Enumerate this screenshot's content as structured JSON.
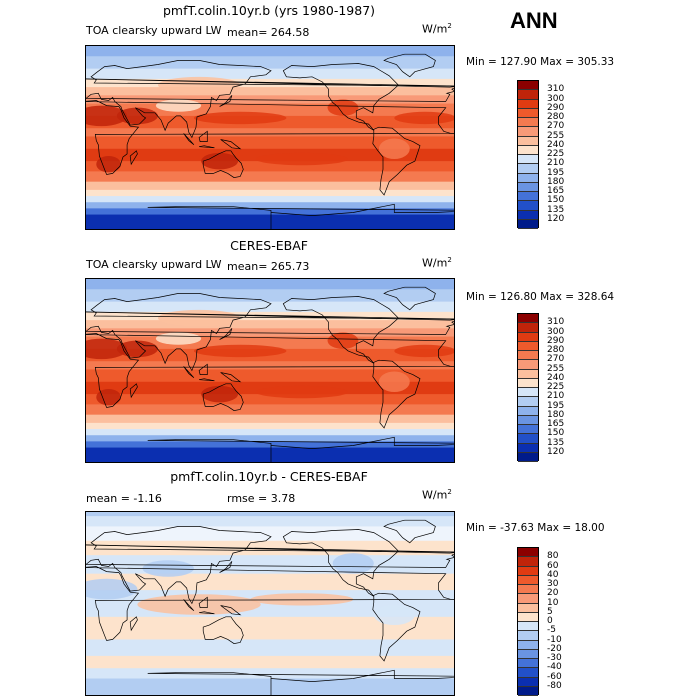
{
  "season": "ANN",
  "panels": [
    {
      "title": "pmfT.colin.10yr.b (yrs 1980-1987)",
      "variable": "TOA clearsky upward LW",
      "stat": "mean= 264.58",
      "units": "W/m",
      "units_sup": "2",
      "minmax": "Min = 127.90 Max = 305.33",
      "field": "model",
      "colorbar": {
        "labels": [
          "310",
          "300",
          "290",
          "280",
          "270",
          "255",
          "240",
          "225",
          "210",
          "195",
          "180",
          "165",
          "150",
          "135",
          "120"
        ],
        "colors": [
          "#8b0000",
          "#c0240a",
          "#e03b12",
          "#ee5a2c",
          "#f47a50",
          "#f89a78",
          "#fbbf9e",
          "#fde3cc",
          "#d6e6f8",
          "#b2cdf2",
          "#8eb2ec",
          "#6a94e2",
          "#4472d8",
          "#2250c8",
          "#0b2fb0",
          "#001b8a"
        ]
      }
    },
    {
      "title": "CERES-EBAF",
      "variable": "TOA clearsky upward LW",
      "stat": "mean= 265.73",
      "units": "W/m",
      "units_sup": "2",
      "minmax": "Min = 126.80 Max = 328.64",
      "field": "obs",
      "colorbar": {
        "labels": [
          "310",
          "300",
          "290",
          "280",
          "270",
          "255",
          "240",
          "225",
          "210",
          "195",
          "180",
          "165",
          "150",
          "135",
          "120"
        ],
        "colors": [
          "#8b0000",
          "#c0240a",
          "#e03b12",
          "#ee5a2c",
          "#f47a50",
          "#f89a78",
          "#fbbf9e",
          "#fde3cc",
          "#d6e6f8",
          "#b2cdf2",
          "#8eb2ec",
          "#6a94e2",
          "#4472d8",
          "#2250c8",
          "#0b2fb0",
          "#001b8a"
        ]
      }
    },
    {
      "title": "pmfT.colin.10yr.b - CERES-EBAF",
      "variable": "mean =  -1.16",
      "stat": "rmse =   3.78",
      "units": "W/m",
      "units_sup": "2",
      "minmax": "Min = -37.63 Max =  18.00",
      "field": "diff",
      "colorbar": {
        "labels": [
          "80",
          "60",
          "40",
          "30",
          "20",
          "10",
          "5",
          "0",
          "-5",
          "-10",
          "-20",
          "-30",
          "-40",
          "-60",
          "-80"
        ],
        "colors": [
          "#8b0000",
          "#c0240a",
          "#e03b12",
          "#ee5a2c",
          "#f47a50",
          "#f89a78",
          "#fbbf9e",
          "#fde3cc",
          "#d6e6f8",
          "#b2cdf2",
          "#8eb2ec",
          "#6a94e2",
          "#4472d8",
          "#2250c8",
          "#0b2fb0",
          "#001b8a"
        ]
      }
    }
  ]
}
